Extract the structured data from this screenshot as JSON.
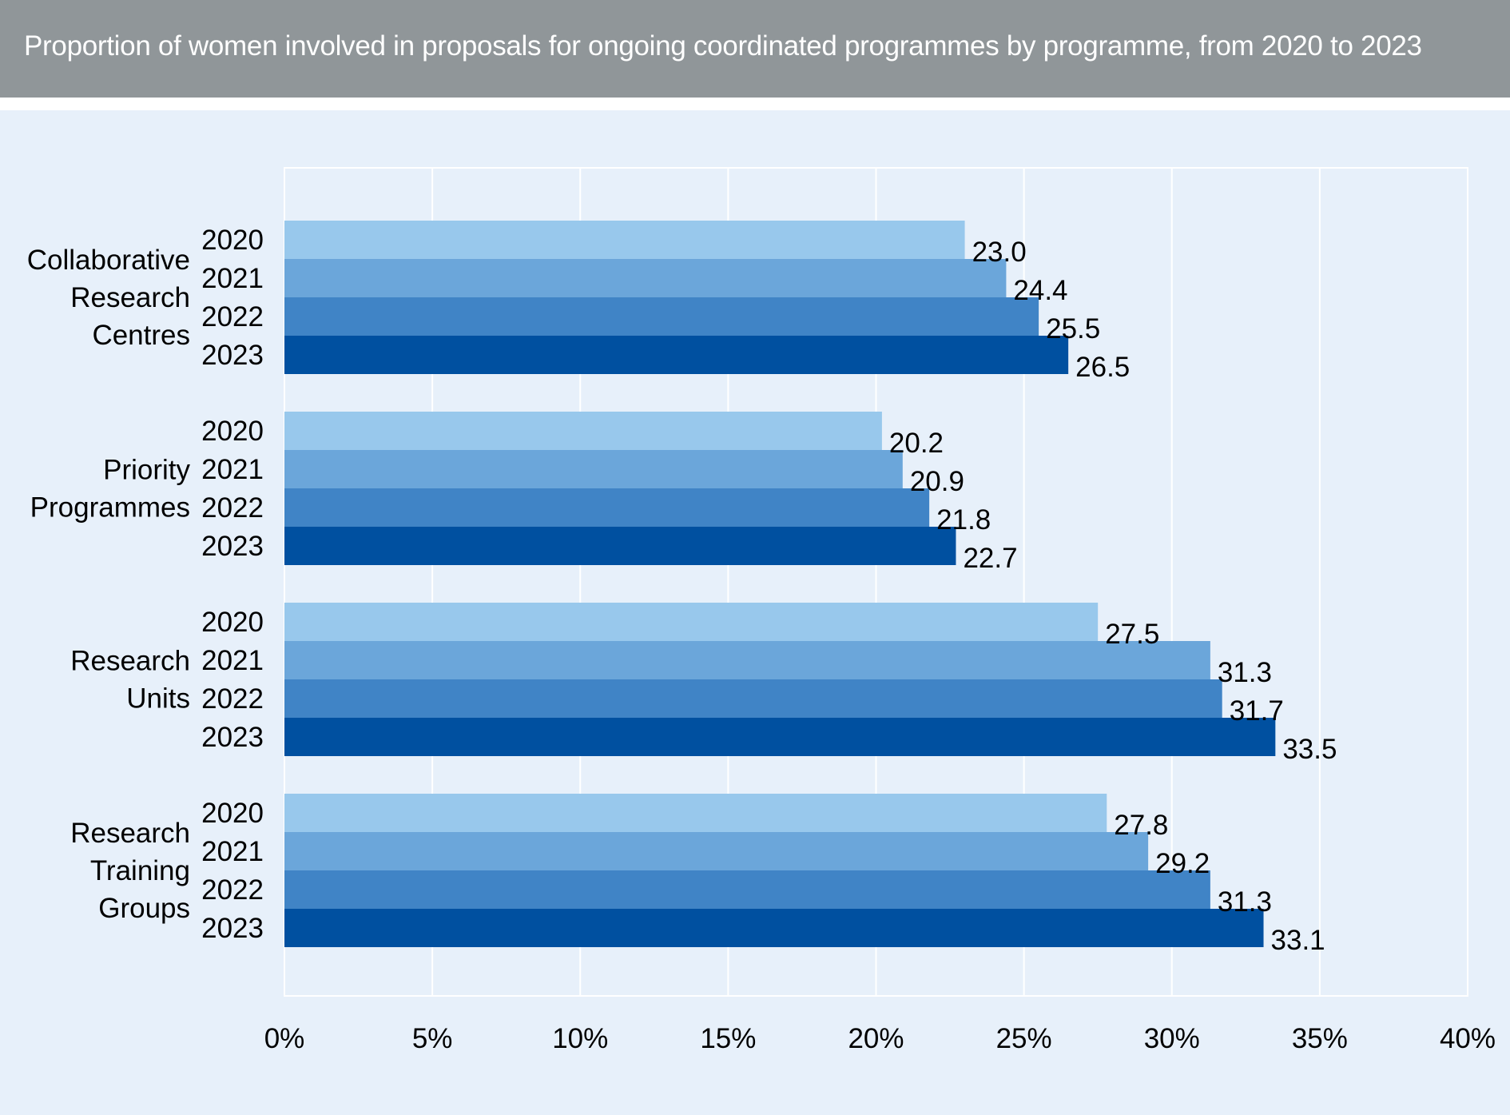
{
  "title": "Proportion of women involved in proposals for ongoing coordinated programmes by programme, from 2020 to 2023",
  "colors": {
    "title_bar": "#909699",
    "background": "#e7f0fa",
    "grid": "#ffffff",
    "series": [
      "#98c8ec",
      "#6ba6da",
      "#4084c6",
      "#0050a0"
    ]
  },
  "chart_data": {
    "type": "bar",
    "orientation": "horizontal",
    "title": "Proportion of women involved in proposals for ongoing coordinated programmes by programme, from 2020 to 2023",
    "categories": [
      [
        "Collaborative",
        "Research",
        "Centres"
      ],
      [
        "Priority",
        "Programmes"
      ],
      [
        "Research",
        "Units"
      ],
      [
        "Research",
        "Training",
        "Groups"
      ]
    ],
    "series": [
      {
        "name": "2020",
        "values": [
          23.0,
          20.2,
          27.5,
          27.8
        ]
      },
      {
        "name": "2021",
        "values": [
          24.4,
          20.9,
          31.3,
          29.2
        ]
      },
      {
        "name": "2022",
        "values": [
          25.5,
          21.8,
          31.7,
          31.3
        ]
      },
      {
        "name": "2023",
        "values": [
          26.5,
          22.7,
          33.5,
          33.1
        ]
      }
    ],
    "value_labels": [
      [
        "23.0",
        "20.2",
        "27.5",
        "27.8"
      ],
      [
        "24.4",
        "20.9",
        "31.3",
        "29.2"
      ],
      [
        "25.5",
        "21.8",
        "31.7",
        "31.3"
      ],
      [
        "26.5",
        "22.7",
        "33.5",
        "33.1"
      ]
    ],
    "xlim": [
      0,
      40
    ],
    "xticks": [
      0,
      5,
      10,
      15,
      20,
      25,
      30,
      35,
      40
    ],
    "xtick_labels": [
      "0%",
      "5%",
      "10%",
      "15%",
      "20%",
      "25%",
      "30%",
      "35%",
      "40%"
    ],
    "grid": "vertical",
    "legend": "none (series labelled as year beside each bar)"
  }
}
